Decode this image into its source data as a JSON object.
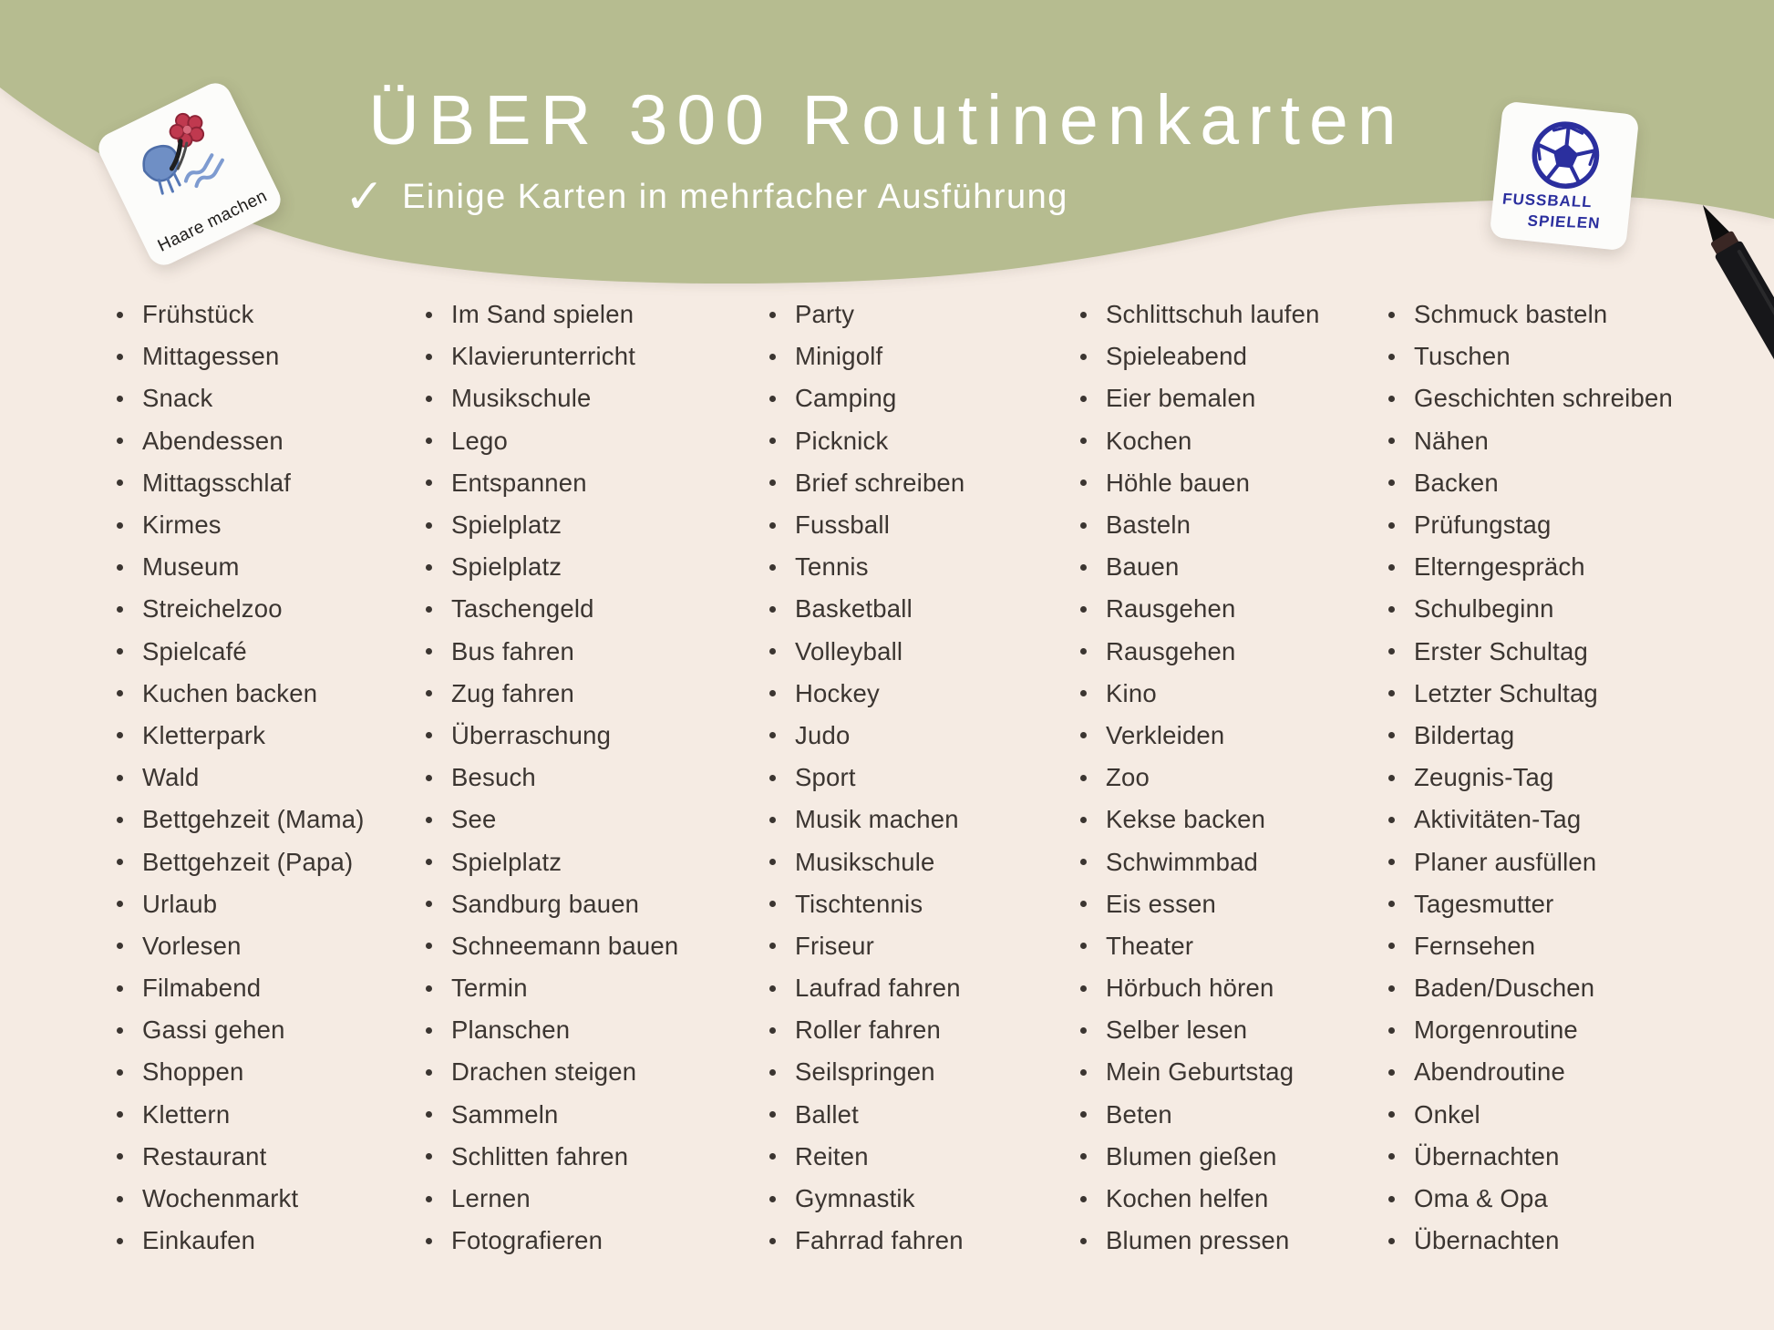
{
  "header": {
    "title": "ÜBER 300 Routinenkarten",
    "check_icon": "✓",
    "subtitle": "Einige Karten in mehrfacher Ausführung"
  },
  "cards": {
    "left": {
      "label": "Haare machen"
    },
    "right": {
      "label_line1": "FUSSBALL",
      "label_line2": "SPIELEN"
    }
  },
  "icons": {
    "check": "✓",
    "hair_clips_illustration": "hand-drawn hair clips",
    "soccer_ball": "hand-drawn soccer ball",
    "marker_pen": "black marker pen tip"
  },
  "colors": {
    "band_green": "#b6bc90",
    "background_cream": "#f5ebe3",
    "text_dark": "#3b3531",
    "title_white": "#ffffff",
    "card_ink_blue": "#2b2f9e"
  },
  "list": {
    "columns": [
      {
        "items": [
          "Frühstück",
          "Mittagessen",
          "Snack",
          "Abendessen",
          "Mittagsschlaf",
          "Kirmes",
          "Museum",
          "Streichelzoo",
          "Spielcafé",
          "Kuchen backen",
          "Kletterpark",
          "Wald",
          "Bettgehzeit (Mama)",
          "Bettgehzeit (Papa)",
          "Urlaub",
          "Vorlesen",
          "Filmabend",
          "Gassi gehen",
          "Shoppen",
          "Klettern",
          "Restaurant",
          "Wochenmarkt",
          "Einkaufen"
        ]
      },
      {
        "items": [
          "Im Sand spielen",
          "Klavierunterricht",
          "Musikschule",
          "Lego",
          "Entspannen",
          "Spielplatz",
          "Spielplatz",
          "Taschengeld",
          "Bus fahren",
          "Zug fahren",
          "Überraschung",
          "Besuch",
          "See",
          "Spielplatz",
          "Sandburg bauen",
          "Schneemann bauen",
          "Termin",
          "Planschen",
          "Drachen steigen",
          "Sammeln",
          "Schlitten fahren",
          "Lernen",
          "Fotografieren"
        ]
      },
      {
        "items": [
          "Party",
          "Minigolf",
          "Camping",
          "Picknick",
          "Brief schreiben",
          "Fussball",
          "Tennis",
          "Basketball",
          "Volleyball",
          "Hockey",
          "Judo",
          "Sport",
          "Musik machen",
          "Musikschule",
          "Tischtennis",
          "Friseur",
          "Laufrad fahren",
          "Roller fahren",
          "Seilspringen",
          "Ballet",
          "Reiten",
          "Gymnastik",
          "Fahrrad fahren"
        ]
      },
      {
        "items": [
          "Schlittschuh laufen",
          "Spieleabend",
          "Eier bemalen",
          "Kochen",
          "Höhle bauen",
          "Basteln",
          "Bauen",
          "Rausgehen",
          "Rausgehen",
          "Kino",
          "Verkleiden",
          "Zoo",
          "Kekse backen",
          "Schwimmbad",
          "Eis essen",
          "Theater",
          "Hörbuch hören",
          "Selber lesen",
          "Mein Geburtstag",
          "Beten",
          "Blumen gießen",
          "Kochen helfen",
          "Blumen pressen"
        ]
      },
      {
        "items": [
          "Schmuck basteln",
          "Tuschen",
          "Geschichten schreiben",
          "Nähen",
          "Backen",
          "Prüfungstag",
          "Elterngespräch",
          "Schulbeginn",
          "Erster Schultag",
          "Letzter Schultag",
          "Bildertag",
          "Zeugnis-Tag",
          "Aktivitäten-Tag",
          "Planer ausfüllen",
          "Tagesmutter",
          "Fernsehen",
          "Baden/Duschen",
          "Morgenroutine",
          "Abendroutine",
          "Onkel",
          "Übernachten",
          "Oma & Opa",
          "Übernachten"
        ]
      }
    ]
  }
}
